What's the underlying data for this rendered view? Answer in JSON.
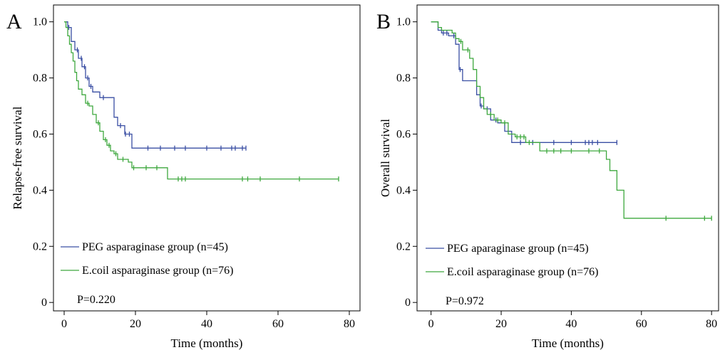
{
  "chart_data": [
    {
      "panel_label": "A",
      "type": "line",
      "step": true,
      "xlabel": "Time (months)",
      "ylabel": "Relapse-free survival",
      "xlim": [
        -3,
        83
      ],
      "ylim": [
        -0.03,
        1.06
      ],
      "xticks": [
        0,
        20,
        40,
        60,
        80
      ],
      "yticks": [
        0,
        0.2,
        0.4,
        0.6,
        0.8,
        1.0
      ],
      "ytick_labels": [
        "0",
        "0.2",
        "0.4",
        "0.6",
        "0.8",
        "1.0"
      ],
      "legend_position": "bottom-left",
      "annotation": "P=0.220",
      "series": [
        {
          "name": "PEG asparaginase group (n=45)",
          "color": "#3a4fa3",
          "x": [
            0,
            1,
            2,
            3,
            4,
            5,
            6,
            7,
            8,
            10,
            11,
            14,
            15,
            17,
            19,
            51
          ],
          "y": [
            1.0,
            0.98,
            0.93,
            0.9,
            0.87,
            0.84,
            0.8,
            0.77,
            0.75,
            0.73,
            0.73,
            0.66,
            0.63,
            0.6,
            0.55,
            0.55
          ],
          "censored": [
            [
              1.3,
              0.98
            ],
            [
              3.7,
              0.9
            ],
            [
              4.8,
              0.87
            ],
            [
              5.7,
              0.84
            ],
            [
              6.6,
              0.8
            ],
            [
              7.5,
              0.77
            ],
            [
              11.0,
              0.73
            ],
            [
              15.8,
              0.63
            ],
            [
              17.2,
              0.6
            ],
            [
              18.3,
              0.6
            ],
            [
              23.5,
              0.55
            ],
            [
              27.0,
              0.55
            ],
            [
              31.0,
              0.55
            ],
            [
              34.0,
              0.55
            ],
            [
              40.0,
              0.55
            ],
            [
              44.0,
              0.55
            ],
            [
              47.0,
              0.55
            ],
            [
              48.0,
              0.55
            ],
            [
              50.0,
              0.55
            ],
            [
              51.0,
              0.55
            ]
          ]
        },
        {
          "name": "E.coil asparaginase group (n=76)",
          "color": "#3ea83e",
          "x": [
            0,
            0.5,
            1,
            1.5,
            2,
            2.5,
            3,
            3.5,
            4,
            5,
            6,
            7,
            8,
            9,
            10,
            11,
            12,
            13,
            14,
            15,
            16,
            18,
            19,
            29,
            77
          ],
          "y": [
            1.0,
            0.98,
            0.95,
            0.92,
            0.89,
            0.86,
            0.82,
            0.79,
            0.76,
            0.74,
            0.71,
            0.7,
            0.67,
            0.64,
            0.61,
            0.58,
            0.56,
            0.54,
            0.53,
            0.51,
            0.51,
            0.5,
            0.48,
            0.44,
            0.44
          ],
          "censored": [
            [
              6.6,
              0.71
            ],
            [
              9.6,
              0.64
            ],
            [
              11.6,
              0.58
            ],
            [
              12.6,
              0.56
            ],
            [
              14.5,
              0.53
            ],
            [
              16.5,
              0.51
            ],
            [
              19.5,
              0.48
            ],
            [
              23.0,
              0.48
            ],
            [
              26.0,
              0.48
            ],
            [
              32.0,
              0.44
            ],
            [
              33.0,
              0.44
            ],
            [
              34.0,
              0.44
            ],
            [
              50.0,
              0.44
            ],
            [
              51.5,
              0.44
            ],
            [
              55.0,
              0.44
            ],
            [
              66.0,
              0.44
            ],
            [
              77.0,
              0.44
            ]
          ]
        }
      ]
    },
    {
      "panel_label": "B",
      "type": "line",
      "step": true,
      "xlabel": "Time (months)",
      "ylabel": "Overall survival",
      "xlim": [
        -4,
        82
      ],
      "ylim": [
        -0.03,
        1.06
      ],
      "xticks": [
        0,
        20,
        40,
        60,
        80
      ],
      "yticks": [
        0,
        0.2,
        0.4,
        0.6,
        0.8,
        1.0
      ],
      "ytick_labels": [
        "0",
        "0.2",
        "0.4",
        "0.6",
        "0.8",
        "1.0"
      ],
      "legend_position": "bottom-left",
      "annotation": "P=0.972",
      "series": [
        {
          "name": "PEG aparaginase group (n=45)",
          "color": "#3a4fa3",
          "x": [
            0,
            2,
            3,
            5,
            7,
            8,
            9,
            11,
            13,
            14,
            15,
            17,
            19,
            21,
            23,
            25,
            53
          ],
          "y": [
            1.0,
            0.97,
            0.96,
            0.95,
            0.92,
            0.83,
            0.79,
            0.79,
            0.74,
            0.7,
            0.69,
            0.65,
            0.64,
            0.61,
            0.57,
            0.57,
            0.57
          ],
          "censored": [
            [
              3.5,
              0.96
            ],
            [
              4.5,
              0.96
            ],
            [
              6.5,
              0.95
            ],
            [
              8.3,
              0.83
            ],
            [
              14.3,
              0.7
            ],
            [
              16.0,
              0.69
            ],
            [
              18.5,
              0.65
            ],
            [
              25.5,
              0.57
            ],
            [
              29.0,
              0.57
            ],
            [
              35.0,
              0.57
            ],
            [
              40.0,
              0.57
            ],
            [
              44.0,
              0.57
            ],
            [
              45.0,
              0.57
            ],
            [
              46.0,
              0.57
            ],
            [
              47.5,
              0.57
            ],
            [
              53.0,
              0.57
            ]
          ]
        },
        {
          "name": "E.coil asparaginase group (n=76)",
          "color": "#3ea83e",
          "x": [
            0,
            2,
            3,
            6,
            7,
            8,
            9,
            10,
            11,
            12,
            13,
            14,
            15,
            16,
            18,
            20,
            22,
            24,
            27,
            31,
            50,
            51,
            53,
            55,
            80
          ],
          "y": [
            1.0,
            0.98,
            0.97,
            0.96,
            0.94,
            0.93,
            0.9,
            0.9,
            0.87,
            0.83,
            0.77,
            0.73,
            0.69,
            0.67,
            0.65,
            0.64,
            0.6,
            0.59,
            0.57,
            0.54,
            0.51,
            0.47,
            0.4,
            0.3,
            0.3
          ],
          "censored": [
            [
              8.5,
              0.93
            ],
            [
              10.5,
              0.9
            ],
            [
              17.0,
              0.67
            ],
            [
              19.0,
              0.65
            ],
            [
              21.0,
              0.64
            ],
            [
              24.5,
              0.59
            ],
            [
              25.5,
              0.59
            ],
            [
              26.5,
              0.59
            ],
            [
              28.0,
              0.57
            ],
            [
              33.0,
              0.54
            ],
            [
              35.0,
              0.54
            ],
            [
              37.0,
              0.54
            ],
            [
              40.0,
              0.54
            ],
            [
              45.0,
              0.54
            ],
            [
              48.0,
              0.54
            ],
            [
              67.0,
              0.3
            ],
            [
              78.0,
              0.3
            ],
            [
              80.0,
              0.3
            ]
          ]
        }
      ]
    }
  ]
}
